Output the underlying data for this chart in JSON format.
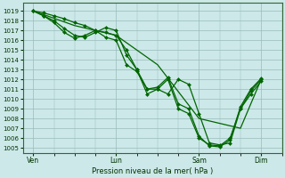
{
  "xlabel": "Pression niveau de la mer( hPa )",
  "bg_color": "#cce8e8",
  "grid_color": "#99bbbb",
  "line_color": "#006600",
  "marker_color": "#006600",
  "ylim": [
    1004.5,
    1019.8
  ],
  "yticks": [
    1005,
    1006,
    1007,
    1008,
    1009,
    1010,
    1011,
    1012,
    1013,
    1014,
    1015,
    1016,
    1017,
    1018,
    1019
  ],
  "xtick_labels": [
    "Ven",
    "Lun",
    "Sam",
    "Dim"
  ],
  "xtick_positions": [
    0,
    40,
    80,
    110
  ],
  "xlim": [
    -5,
    120
  ],
  "lines": [
    {
      "x": [
        0,
        5,
        10,
        15,
        20,
        25,
        30,
        35,
        40,
        45,
        50,
        55,
        60,
        65,
        70,
        75,
        80,
        85,
        90,
        95,
        100,
        105,
        110
      ],
      "y": [
        1019,
        1018.8,
        1018.5,
        1018.2,
        1017.8,
        1017.5,
        1017.0,
        1016.8,
        1016.5,
        1015.0,
        1013.0,
        1011.0,
        1011.0,
        1010.5,
        1012.0,
        1011.5,
        1008.5,
        1005.5,
        1005.3,
        1005.5,
        1009.0,
        1010.5,
        1011.8
      ],
      "marker": "D",
      "markersize": 2.0,
      "linewidth": 0.9
    },
    {
      "x": [
        0,
        5,
        10,
        15,
        20,
        25,
        30,
        35,
        40,
        45,
        50,
        55,
        60,
        65,
        70,
        75,
        80,
        85,
        90,
        95,
        100,
        105,
        110
      ],
      "y": [
        1019,
        1018.5,
        1018.0,
        1017.2,
        1016.5,
        1016.3,
        1016.8,
        1017.3,
        1017.0,
        1014.5,
        1013.0,
        1010.5,
        1011.0,
        1012.0,
        1009.0,
        1008.5,
        1006.0,
        1005.3,
        1005.2,
        1006.0,
        1009.0,
        1010.8,
        1012.0
      ],
      "marker": "D",
      "markersize": 2.0,
      "linewidth": 0.9
    },
    {
      "x": [
        0,
        5,
        10,
        15,
        20,
        25,
        30,
        35,
        40,
        45,
        50,
        55,
        60,
        65,
        70,
        75,
        80,
        85,
        90,
        95,
        100,
        105,
        110
      ],
      "y": [
        1019,
        1018.5,
        1017.8,
        1016.8,
        1016.2,
        1016.5,
        1017.0,
        1016.3,
        1016.0,
        1013.5,
        1012.8,
        1011.0,
        1011.2,
        1012.2,
        1009.5,
        1009.0,
        1006.2,
        1005.2,
        1005.1,
        1005.8,
        1009.2,
        1011.0,
        1012.1
      ],
      "marker": "D",
      "markersize": 2.0,
      "linewidth": 0.9
    },
    {
      "x": [
        0,
        20,
        40,
        60,
        80,
        100,
        110
      ],
      "y": [
        1019,
        1017.5,
        1016.5,
        1013.5,
        1008.0,
        1007.0,
        1012.0
      ],
      "marker": null,
      "markersize": 0,
      "linewidth": 0.9
    }
  ]
}
